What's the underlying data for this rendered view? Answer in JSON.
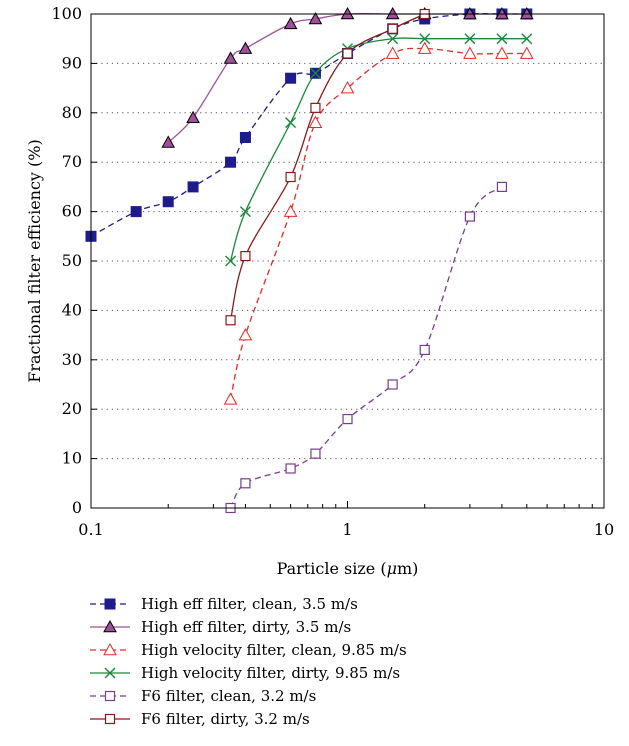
{
  "chart_data": {
    "type": "line",
    "xlabel_prefix": "Particle size (",
    "xlabel_unit_greek": "μ",
    "xlabel_suffix": "m)",
    "ylabel": "Fractional filter efficiency (%)",
    "xscale": "log",
    "xlim": [
      0.1,
      10
    ],
    "ylim": [
      0,
      100
    ],
    "x_ticks": [
      0.1,
      1,
      10
    ],
    "x_tick_labels": [
      "0.1",
      "1",
      "10"
    ],
    "y_ticks": [
      0,
      10,
      20,
      30,
      40,
      50,
      60,
      70,
      80,
      90,
      100
    ],
    "y_tick_labels": [
      "0",
      "10",
      "20",
      "30",
      "40",
      "50",
      "60",
      "70",
      "80",
      "90",
      "100"
    ],
    "grid": "horizontal dotted",
    "legend_position": "bottom",
    "series": [
      {
        "name": "High eff filter, clean, 3.5 m/s",
        "color": "#1c1c8c",
        "dash": "dashed",
        "marker": "square-filled",
        "x": [
          0.1,
          0.15,
          0.2,
          0.25,
          0.35,
          0.4,
          0.6,
          0.75,
          1.0,
          1.5,
          2.0,
          3.0,
          4.0,
          5.0
        ],
        "y": [
          55,
          60,
          62,
          65,
          70,
          75,
          87,
          88,
          92,
          97,
          99,
          100,
          100,
          100
        ]
      },
      {
        "name": "High eff filter, dirty, 3.5 m/s",
        "color": "#a0509a",
        "dash": "solid",
        "marker": "triangle-filled",
        "x": [
          0.2,
          0.25,
          0.35,
          0.4,
          0.6,
          0.75,
          1.0,
          1.5,
          2.0,
          3.0,
          4.0,
          5.0
        ],
        "y": [
          74,
          79,
          91,
          93,
          98,
          99,
          100,
          100,
          100,
          100,
          100,
          100
        ]
      },
      {
        "name": "High velocity filter, clean, 9.85 m/s",
        "color": "#e8282a",
        "dash": "dashed",
        "marker": "triangle-open",
        "x": [
          0.35,
          0.4,
          0.6,
          0.75,
          1.0,
          1.5,
          2.0,
          3.0,
          4.0,
          5.0
        ],
        "y": [
          22,
          35,
          60,
          78,
          85,
          92,
          93,
          92,
          92,
          92
        ]
      },
      {
        "name": "High velocity filter, dirty, 9.85 m/s",
        "color": "#1a8a3a",
        "dash": "solid",
        "marker": "x",
        "x": [
          0.35,
          0.4,
          0.6,
          0.75,
          1.0,
          1.5,
          2.0,
          3.0,
          4.0,
          5.0
        ],
        "y": [
          50,
          60,
          78,
          88,
          93,
          95,
          95,
          95,
          95,
          95
        ]
      },
      {
        "name": "F6 filter, clean, 3.2 m/s",
        "color": "#7a3c8c",
        "dash": "dashed",
        "marker": "square-open",
        "x": [
          0.35,
          0.4,
          0.6,
          0.75,
          1.0,
          1.5,
          2.0,
          3.0,
          4.0
        ],
        "y": [
          0,
          5,
          8,
          11,
          18,
          25,
          32,
          59,
          65
        ]
      },
      {
        "name": "F6 filter, dirty, 3.2 m/s",
        "color": "#8a1a1a",
        "dash": "solid",
        "marker": "square-open",
        "x": [
          0.35,
          0.4,
          0.6,
          0.75,
          1.0,
          1.5,
          2.0
        ],
        "y": [
          38,
          51,
          67,
          81,
          92,
          97,
          100
        ]
      }
    ]
  }
}
